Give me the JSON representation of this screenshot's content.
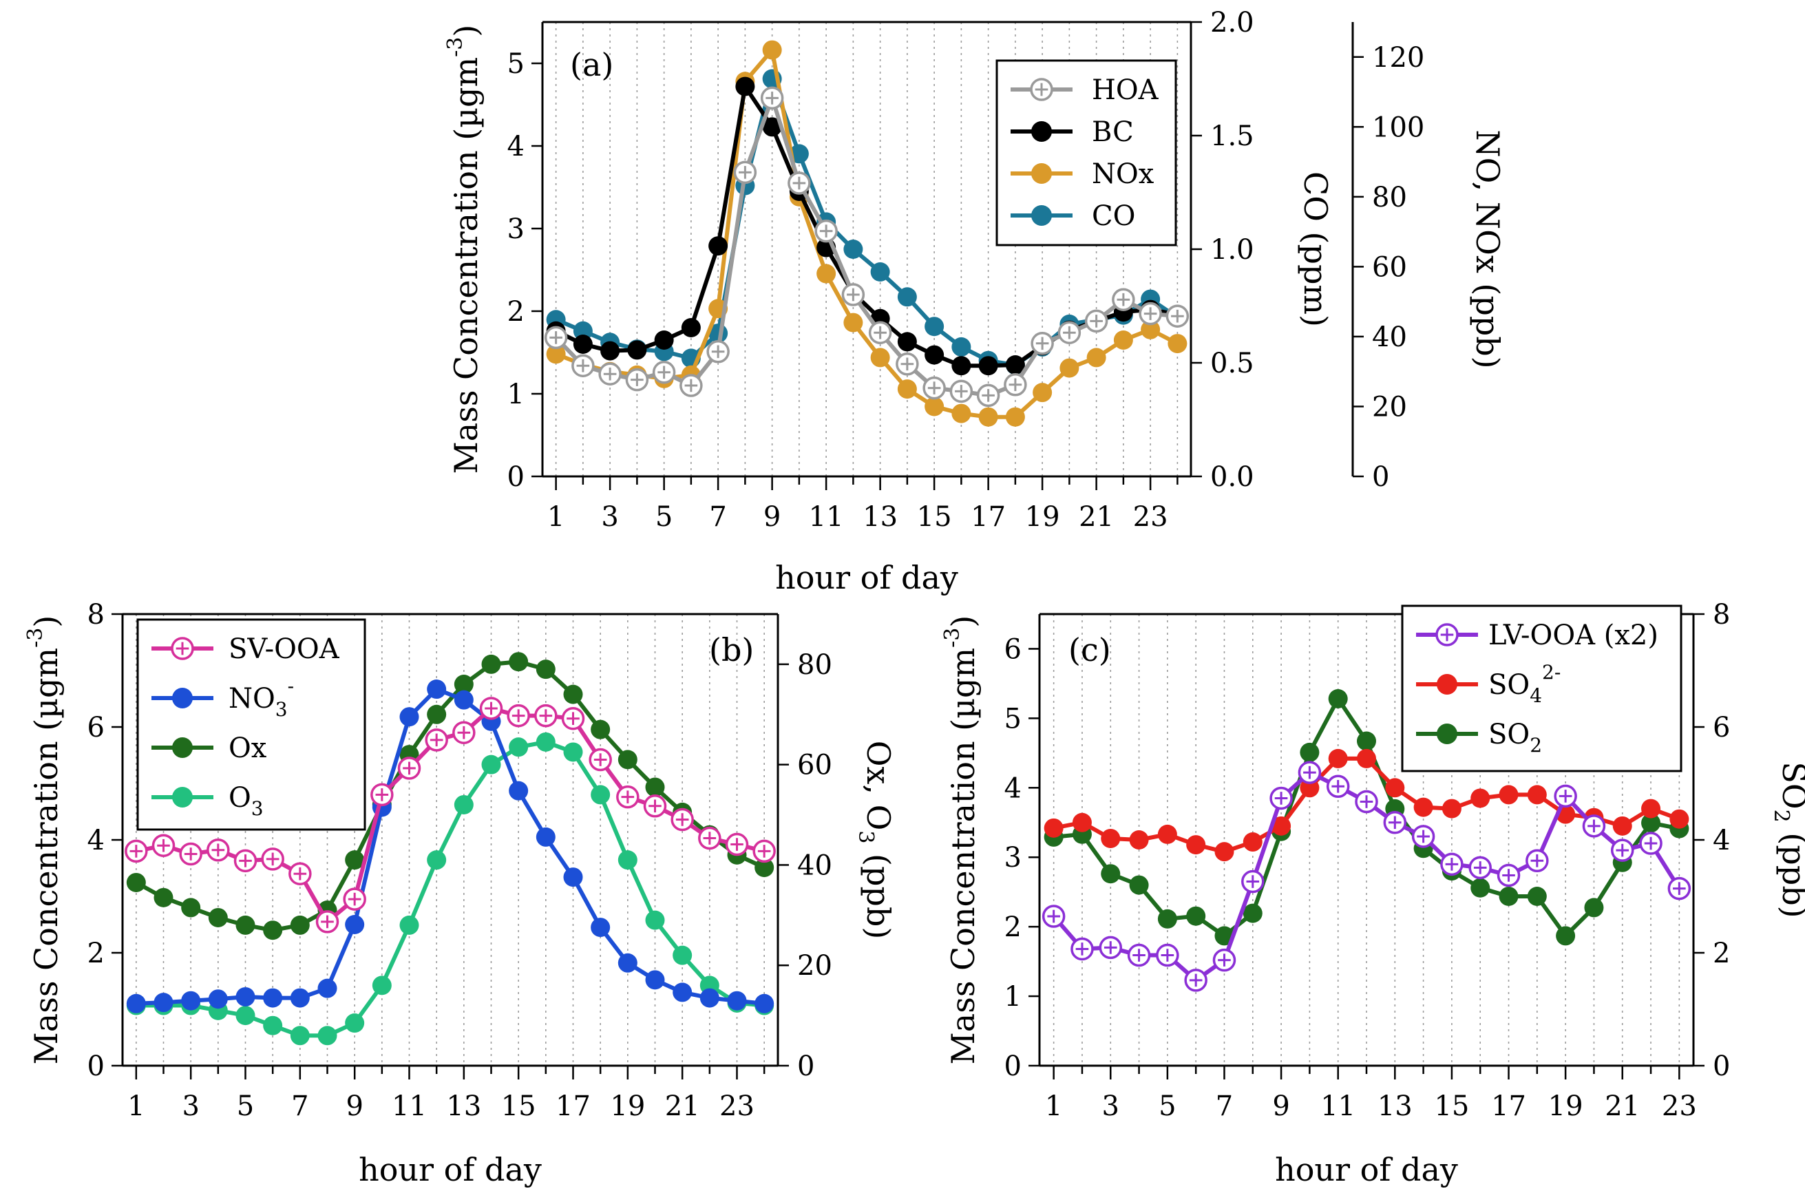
{
  "figure": {
    "background": "#ffffff"
  },
  "chart_data": [
    {
      "id": "a",
      "type": "line",
      "panel_label": "(a)",
      "xlabel": "hour of day",
      "x": [
        1,
        2,
        3,
        4,
        5,
        6,
        7,
        8,
        9,
        10,
        11,
        12,
        13,
        14,
        15,
        16,
        17,
        18,
        19,
        20,
        21,
        22,
        23,
        24
      ],
      "xlim": [
        0.5,
        24.5
      ],
      "xticks": [
        1,
        3,
        5,
        7,
        9,
        11,
        13,
        15,
        17,
        19,
        21,
        23
      ],
      "ylabel_main": "Mass Concentration (µgm",
      "ylabel_sup": "-3",
      "ylabel_end": ")",
      "ylim": [
        0,
        5.5
      ],
      "yticks": [
        "0",
        "1",
        "2",
        "3",
        "4",
        "5"
      ],
      "y2label": "CO (ppm)",
      "y2lim": [
        0,
        2.0
      ],
      "y2ticks": [
        "0.0",
        "0.5",
        "1.0",
        "1.5",
        "2.0"
      ],
      "y3label": "NO, NOx (ppb)",
      "y3lim": [
        0,
        130
      ],
      "y3ticks": [
        "0",
        "20",
        "40",
        "60",
        "80",
        "100",
        "120"
      ],
      "legend_position": "top-right",
      "series": [
        {
          "name": "CO",
          "axis": "y2",
          "color": "#1b7797",
          "marker": "filled",
          "values": [
            0.69,
            0.64,
            0.59,
            0.56,
            0.55,
            0.52,
            0.63,
            1.28,
            1.75,
            1.42,
            1.12,
            1.0,
            0.9,
            0.79,
            0.66,
            0.57,
            0.51,
            0.49,
            0.57,
            0.67,
            0.69,
            0.71,
            0.78,
            0.7
          ]
        },
        {
          "name": "NOx",
          "axis": "y3",
          "color": "#da9a2a",
          "marker": "filled",
          "values": [
            35,
            32,
            30,
            29,
            28,
            29,
            48,
            113,
            122,
            80,
            58,
            44,
            34,
            25,
            20,
            18,
            17,
            17,
            24,
            31,
            34,
            39,
            42,
            38
          ]
        },
        {
          "name": "BC",
          "axis": "y",
          "color": "#000000",
          "marker": "filled",
          "values": [
            1.76,
            1.6,
            1.52,
            1.53,
            1.65,
            1.8,
            2.79,
            4.72,
            4.23,
            3.45,
            2.77,
            2.22,
            1.91,
            1.63,
            1.47,
            1.34,
            1.34,
            1.35,
            1.58,
            1.77,
            1.88,
            1.99,
            2.02,
            1.96
          ]
        },
        {
          "name": "HOA",
          "axis": "y",
          "color": "#9a9a9a",
          "marker": "open-plus",
          "values": [
            1.68,
            1.34,
            1.24,
            1.17,
            1.26,
            1.1,
            1.51,
            3.68,
            4.58,
            3.55,
            2.97,
            2.2,
            1.74,
            1.36,
            1.07,
            1.03,
            0.98,
            1.11,
            1.61,
            1.74,
            1.88,
            2.14,
            1.97,
            1.94
          ]
        }
      ],
      "legend_order": [
        "HOA",
        "BC",
        "NOx",
        "CO"
      ]
    },
    {
      "id": "b",
      "type": "line",
      "panel_label": "(b)",
      "xlabel": "hour of day",
      "x": [
        1,
        2,
        3,
        4,
        5,
        6,
        7,
        8,
        9,
        10,
        11,
        12,
        13,
        14,
        15,
        16,
        17,
        18,
        19,
        20,
        21,
        22,
        23,
        24
      ],
      "xlim": [
        0.5,
        24.5
      ],
      "xticks": [
        1,
        3,
        5,
        7,
        9,
        11,
        13,
        15,
        17,
        19,
        21,
        23
      ],
      "ylabel_main": "Mass Concentration (µgm",
      "ylabel_sup": "-3",
      "ylabel_end": ")",
      "ylim": [
        0,
        8
      ],
      "yticks": [
        "0",
        "2",
        "4",
        "6",
        "8"
      ],
      "y2label_main": "Ox, O",
      "y2label_sub": "3",
      "y2label_end": " (ppb)",
      "y2lim": [
        0,
        90
      ],
      "y2ticks": [
        "0",
        "20",
        "40",
        "60",
        "80"
      ],
      "legend_position": "top-left",
      "series": [
        {
          "name": "Ox",
          "axis": "y2",
          "color": "#206b1c",
          "marker": "filled",
          "values": [
            36.5,
            33.5,
            31.5,
            29.5,
            28,
            27,
            28,
            31,
            41,
            52,
            62,
            70,
            76,
            80,
            80.5,
            79,
            74,
            67,
            61,
            55.5,
            50.5,
            46,
            42,
            39.5
          ]
        },
        {
          "name": "O3",
          "axis": "y2",
          "color": "#22c07f",
          "marker": "filled",
          "values": [
            12,
            12,
            12,
            11,
            10,
            8,
            6,
            6,
            8.5,
            16,
            28,
            41,
            52,
            60,
            63.5,
            64.5,
            62.5,
            54,
            41,
            29,
            22,
            16,
            12.5,
            12
          ]
        },
        {
          "name": "NO3-",
          "axis": "y",
          "color": "#1c4fd6",
          "marker": "filled",
          "values": [
            1.1,
            1.12,
            1.15,
            1.18,
            1.22,
            1.2,
            1.2,
            1.37,
            2.5,
            4.58,
            6.18,
            6.67,
            6.48,
            6.1,
            4.87,
            4.05,
            3.34,
            2.45,
            1.82,
            1.52,
            1.3,
            1.2,
            1.15,
            1.1
          ]
        },
        {
          "name": "SV-OOA",
          "axis": "y",
          "color": "#d6309b",
          "marker": "open-plus",
          "values": [
            3.8,
            3.9,
            3.75,
            3.82,
            3.63,
            3.66,
            3.4,
            2.55,
            2.95,
            4.8,
            5.27,
            5.77,
            5.9,
            6.33,
            6.2,
            6.2,
            6.15,
            5.42,
            4.76,
            4.6,
            4.36,
            4.03,
            3.92,
            3.8
          ]
        }
      ],
      "legend": [
        {
          "name": "SV-OOA",
          "main": "SV-OOA",
          "sup": "",
          "sub": ""
        },
        {
          "name": "NO3-",
          "main": "NO",
          "sub": "3",
          "sup": "-"
        },
        {
          "name": "Ox",
          "main": "Ox",
          "sup": "",
          "sub": ""
        },
        {
          "name": "O3",
          "main": "O",
          "sub": "3",
          "sup": ""
        }
      ]
    },
    {
      "id": "c",
      "type": "line",
      "panel_label": "(c)",
      "xlabel": "hour of day",
      "x": [
        1,
        2,
        3,
        4,
        5,
        6,
        7,
        8,
        9,
        10,
        11,
        12,
        13,
        14,
        15,
        16,
        17,
        18,
        19,
        20,
        21,
        22,
        23
      ],
      "xlim": [
        0.5,
        23.5
      ],
      "xticks": [
        1,
        3,
        5,
        7,
        9,
        11,
        13,
        15,
        17,
        19,
        21,
        23
      ],
      "ylabel_main": "Mass Concentration (µgm",
      "ylabel_sup": "-3",
      "ylabel_end": ")",
      "ylim": [
        0,
        6.5
      ],
      "yticks": [
        "0",
        "1",
        "2",
        "3",
        "4",
        "5",
        "6"
      ],
      "y2label_main": "SO",
      "y2label_sub": "2",
      "y2label_end": " (ppb)",
      "y2lim": [
        0,
        8
      ],
      "y2ticks": [
        "0",
        "2",
        "4",
        "6",
        "8"
      ],
      "legend_position": "top-right",
      "series": [
        {
          "name": "SO2",
          "axis": "y2",
          "color": "#1e6b1e",
          "marker": "filled",
          "values": [
            4.05,
            4.1,
            3.4,
            3.2,
            2.6,
            2.65,
            2.3,
            2.7,
            4.15,
            5.55,
            6.5,
            5.75,
            4.55,
            3.85,
            3.45,
            3.15,
            3.0,
            3.0,
            2.3,
            2.8,
            3.6,
            4.3,
            4.2
          ]
        },
        {
          "name": "SO4 2-",
          "axis": "y",
          "color": "#e8231c",
          "marker": "filled",
          "values": [
            3.42,
            3.5,
            3.27,
            3.25,
            3.33,
            3.18,
            3.08,
            3.22,
            3.45,
            4.0,
            4.42,
            4.42,
            4.0,
            3.72,
            3.7,
            3.85,
            3.9,
            3.9,
            3.62,
            3.57,
            3.45,
            3.7,
            3.55
          ]
        },
        {
          "name": "LV-OOA (x2)",
          "axis": "y",
          "color": "#8b2fd6",
          "marker": "open-plus",
          "values": [
            2.15,
            1.68,
            1.7,
            1.59,
            1.59,
            1.23,
            1.52,
            2.65,
            3.85,
            4.22,
            4.02,
            3.8,
            3.5,
            3.3,
            2.9,
            2.85,
            2.74,
            2.95,
            3.88,
            3.45,
            3.1,
            3.2,
            2.55
          ]
        }
      ],
      "legend": [
        {
          "name": "LV-OOA (x2)",
          "main": "LV-OOA (x2)",
          "sup": "",
          "sub": ""
        },
        {
          "name": "SO4 2-",
          "main": "SO",
          "sub": "4",
          "sup": "2-"
        },
        {
          "name": "SO2",
          "main": "SO",
          "sub": "2",
          "sup": ""
        }
      ]
    }
  ]
}
